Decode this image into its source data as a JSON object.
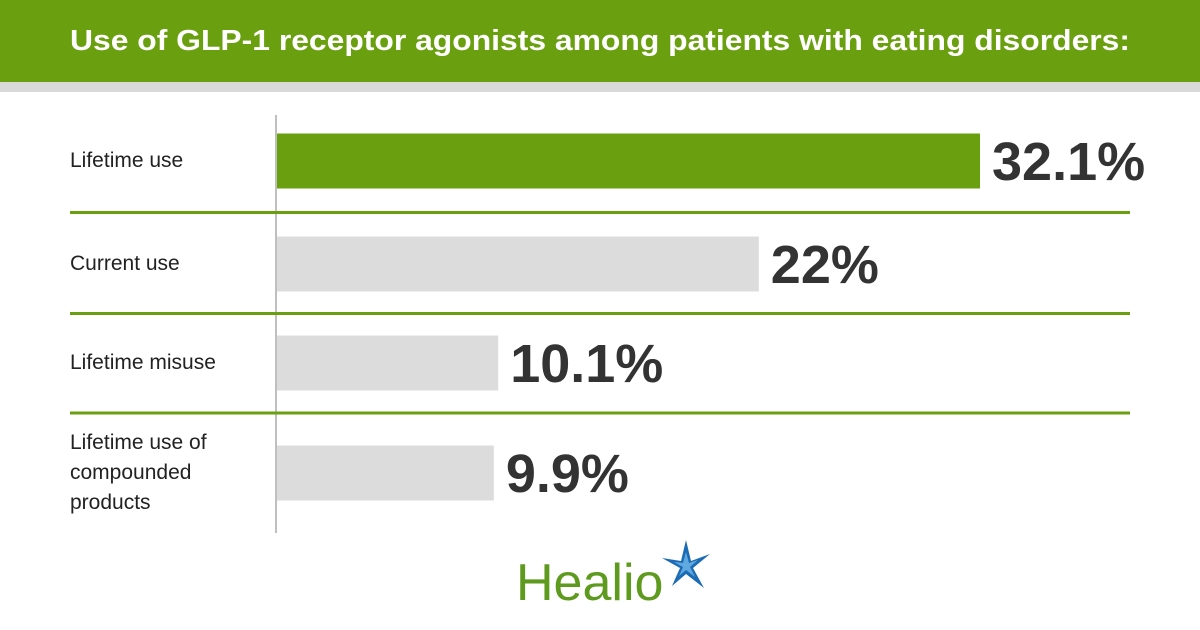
{
  "chart_data": {
    "type": "bar",
    "orientation": "horizontal",
    "title": "Use of GLP-1 receptor agonists among patients with eating disorders:",
    "categories": [
      "Lifetime use",
      "Current use",
      "Lifetime misuse",
      "Lifetime use of compounded products"
    ],
    "values": [
      32.1,
      22,
      10.1,
      9.9
    ],
    "value_labels": [
      "32.1%",
      "22%",
      "10.1%",
      "9.9%"
    ],
    "colors": [
      "#6aa00f",
      "#dcdcdc",
      "#dcdcdc",
      "#dcdcdc"
    ],
    "logo": "Healio"
  }
}
